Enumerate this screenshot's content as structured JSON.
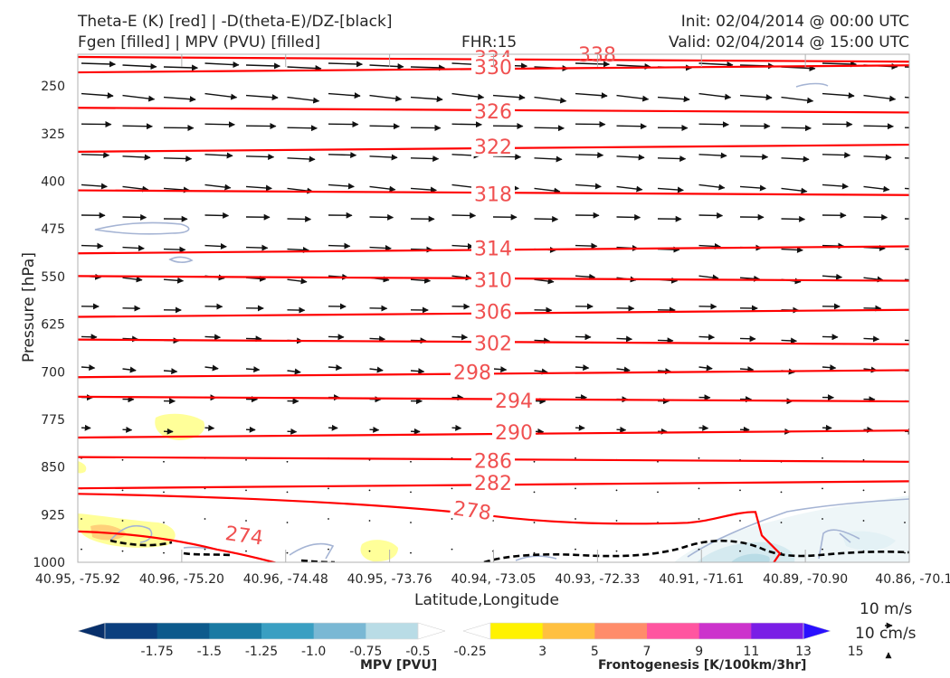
{
  "header": {
    "left_line1": "Theta-E (K) [red] | -D(theta-E)/DZ-[black]",
    "left_line2": "Fgen [filled] | MPV (PVU) [filled]",
    "center": "FHR:15",
    "right_line1": "Init: 02/04/2014 @ 00:00 UTC",
    "right_line2": "Valid: 02/04/2014 @ 15:00 UTC"
  },
  "chart_data": {
    "type": "contour",
    "title": "Theta-E (K) [red] | -D(theta-E)/DZ-[black] / Fgen [filled] | MPV (PVU) [filled]",
    "xlabel": "Latitude,Longitude",
    "ylabel": "Pressure [hPa]",
    "x_ticks": [
      "40.95, -75.92",
      "40.96, -75.20",
      "40.96, -74.48",
      "40.95, -73.76",
      "40.94, -73.05",
      "40.93, -72.33",
      "40.91, -71.61",
      "40.89, -70.90",
      "40.86, -70.1"
    ],
    "y_ticks": [
      250,
      325,
      400,
      475,
      550,
      625,
      700,
      775,
      850,
      925,
      1000
    ],
    "y_range": [
      200,
      1000
    ],
    "y_inverted": true,
    "theta_e_contours": [
      {
        "label": "334",
        "level_hpa": 210
      },
      {
        "label": "330",
        "level_hpa": 220
      },
      {
        "label": "326",
        "level_hpa": 290
      },
      {
        "label": "322",
        "level_hpa": 345
      },
      {
        "label": "318",
        "level_hpa": 420
      },
      {
        "label": "314",
        "level_hpa": 505
      },
      {
        "label": "310",
        "level_hpa": 555
      },
      {
        "label": "306",
        "level_hpa": 605
      },
      {
        "label": "302",
        "level_hpa": 655
      },
      {
        "label": "298",
        "level_hpa": 700
      },
      {
        "label": "294",
        "level_hpa": 745
      },
      {
        "label": "290",
        "level_hpa": 795
      },
      {
        "label": "286",
        "level_hpa": 840
      },
      {
        "label": "282",
        "level_hpa": 875
      },
      {
        "label": "278",
        "level_hpa": 915
      },
      {
        "label": "274",
        "level_hpa": 960
      }
    ],
    "partial_label": "338",
    "mpv_colorbar": {
      "title": "MPV [PVU]",
      "ticks": [
        "-1.75",
        "-1.5",
        "-1.25",
        "-1.0",
        "-0.75",
        "-0.5",
        "-0.25"
      ],
      "colors": [
        "#08306b",
        "#0b3f7e",
        "#0d5a8c",
        "#1a7aa3",
        "#3a9fc2",
        "#7ab8d4",
        "#b9dce6",
        "#ffffff"
      ]
    },
    "fgen_colorbar": {
      "title": "Frontogenesis [K/100km/3hr]",
      "ticks": [
        "3",
        "5",
        "7",
        "9",
        "11",
        "13",
        "15"
      ],
      "colors": [
        "#ffffff",
        "#fff200",
        "#ffc040",
        "#ff8c6a",
        "#ff55a0",
        "#cc33cc",
        "#7a1ee6",
        "#2a10ff"
      ]
    },
    "wind_reference": {
      "horizontal": "10 m/s",
      "vertical": "10 cm/s"
    }
  },
  "colors": {
    "theta_e": "#ff0000",
    "theta_e_label": "#f05050",
    "stability": "#000000",
    "arrows": "#111111",
    "axis_frame": "#b0b0b0"
  }
}
